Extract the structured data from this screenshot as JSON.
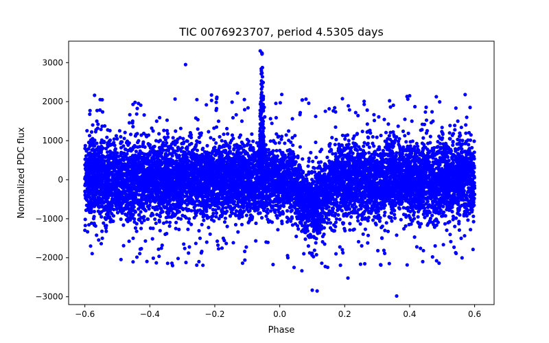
{
  "chart_data": {
    "type": "scatter",
    "title": "TIC 0076923707, period 4.5305 days",
    "xlabel": "Phase",
    "ylabel": "Normalized PDC flux",
    "xlim": [
      -0.65,
      0.66
    ],
    "ylim": [
      -3200,
      3550
    ],
    "x_ticks": [
      -0.6,
      -0.4,
      -0.2,
      0.0,
      0.2,
      0.4,
      0.6
    ],
    "x_tick_labels": [
      "−0.6",
      "−0.4",
      "−0.2",
      "0.0",
      "0.2",
      "0.4",
      "0.6"
    ],
    "y_ticks": [
      -3000,
      -2000,
      -1000,
      0,
      1000,
      2000,
      3000
    ],
    "y_tick_labels": [
      "−3000",
      "−2000",
      "−1000",
      "0",
      "1000",
      "2000",
      "3000"
    ],
    "marker_color": "#0000ff",
    "grid": false,
    "series": [
      {
        "name": "PDC flux",
        "phase_range": [
          -0.6,
          0.6
        ],
        "baseline_scatter_sigma": 450,
        "transit": {
          "center_phase": 0.1,
          "depth": -700,
          "half_width": 0.06
        },
        "flare": {
          "center_phase": -0.055,
          "peak": 3300,
          "half_width": 0.008
        },
        "outliers": [
          {
            "x": -0.29,
            "y": 2950
          },
          {
            "x": -0.13,
            "y": 2220
          },
          {
            "x": -0.06,
            "y": 3300
          },
          {
            "x": -0.055,
            "y": 3250
          },
          {
            "x": 0.1,
            "y": -2830
          },
          {
            "x": 0.115,
            "y": -2850
          },
          {
            "x": 0.36,
            "y": -2980
          },
          {
            "x": 0.21,
            "y": -2520
          },
          {
            "x": -0.33,
            "y": -2200
          },
          {
            "x": -0.38,
            "y": -2130
          },
          {
            "x": 0.26,
            "y": 1930
          },
          {
            "x": 0.4,
            "y": 2150
          }
        ]
      }
    ]
  }
}
